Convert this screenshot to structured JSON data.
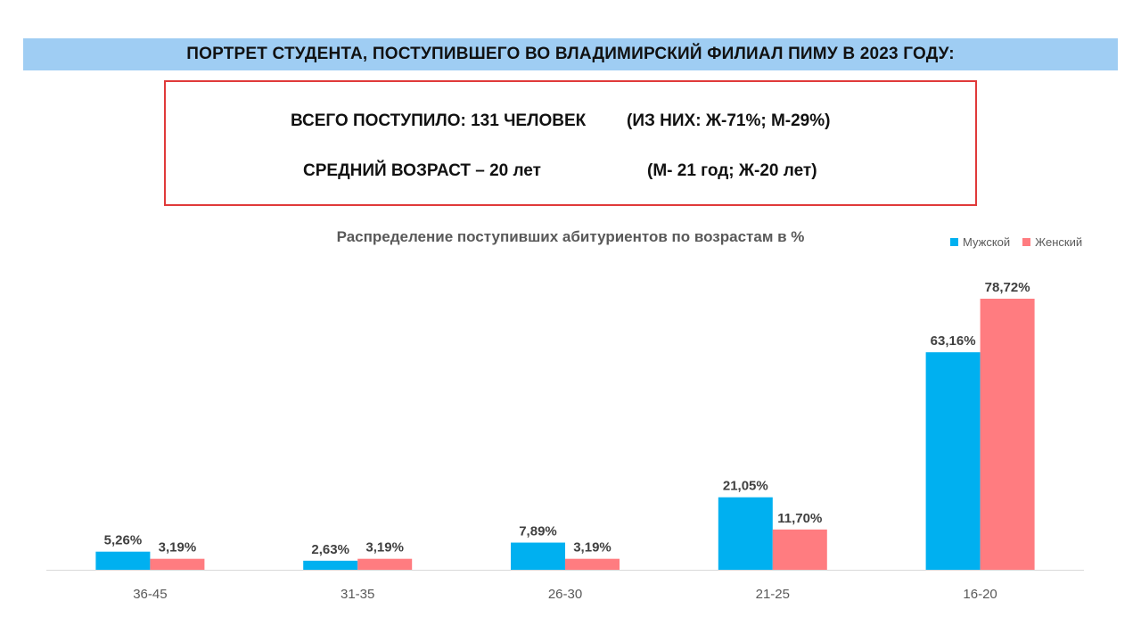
{
  "banner": {
    "title": "ПОРТРЕТ СТУДЕНТА, ПОСТУПИВШЕГО ВО ВЛАДИМИРСКИЙ ФИЛИАЛ ПИМУ В 2023 ГОДУ:"
  },
  "summary": {
    "total_label": "ВСЕГО ПОСТУПИЛО: 131 ЧЕЛОВЕК",
    "total_breakdown": "(ИЗ НИХ: Ж-71%; М-29%)",
    "age_label": "СРЕДНИЙ ВОЗРАСТ – 20 лет",
    "age_breakdown": "(М- 21 год; Ж-20 лет)"
  },
  "colors": {
    "banner": "#9fcdf3",
    "box_border": "#e03a3a",
    "male": "#00b0f0",
    "female": "#ff7c80"
  },
  "chart_data": {
    "type": "bar",
    "title": "Распределение поступивших абитуриентов по возрастам в %",
    "categories": [
      "36-45",
      "31-35",
      "26-30",
      "21-25",
      "16-20"
    ],
    "series": [
      {
        "name": "Мужской",
        "color": "#00b0f0",
        "values": [
          5.26,
          2.63,
          7.89,
          21.05,
          63.16
        ],
        "labels": [
          "5,26%",
          "2,63%",
          "7,89%",
          "21,05%",
          "63,16%"
        ]
      },
      {
        "name": "Женский",
        "color": "#ff7c80",
        "values": [
          3.19,
          3.19,
          3.19,
          11.7,
          78.72
        ],
        "labels": [
          "3,19%",
          "3,19%",
          "3,19%",
          "11,70%",
          "78,72%"
        ]
      }
    ],
    "ylim": [
      0,
      80
    ],
    "grid": false,
    "legend_position": "top-right"
  }
}
